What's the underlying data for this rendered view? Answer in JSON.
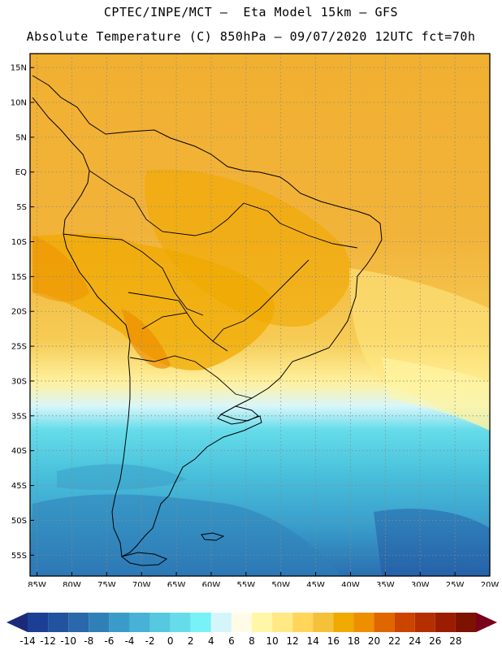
{
  "header": {
    "line1": "CPTEC/INPE/MCT –  Eta Model 15km – GFS",
    "line2": "Absolute Temperature (C) 850hPa – 09/07/2020 12UTC fct=70h"
  },
  "map": {
    "lat_labels": [
      "15N",
      "10N",
      "5N",
      "EQ",
      "5S",
      "10S",
      "15S",
      "20S",
      "25S",
      "30S",
      "35S",
      "40S",
      "45S",
      "50S",
      "55S"
    ],
    "lat_values": [
      15,
      10,
      5,
      0,
      -5,
      -10,
      -15,
      -20,
      -25,
      -30,
      -35,
      -40,
      -45,
      -50,
      -55
    ],
    "lon_labels": [
      "85W",
      "80W",
      "75W",
      "70W",
      "65W",
      "60W",
      "55W",
      "50W",
      "45W",
      "40W",
      "35W",
      "30W",
      "25W",
      "20W"
    ],
    "lon_values": [
      -85,
      -80,
      -75,
      -70,
      -65,
      -60,
      -55,
      -50,
      -45,
      -40,
      -35,
      -30,
      -25,
      -20
    ],
    "lon_range": [
      -86,
      -20
    ],
    "lat_range": [
      -58,
      17
    ],
    "gridlines": "dotted"
  },
  "legend": {
    "labels": [
      "-14",
      "-12",
      "-10",
      "-8",
      "-6",
      "-4",
      "-2",
      "0",
      "2",
      "4",
      "6",
      "8",
      "10",
      "12",
      "14",
      "16",
      "18",
      "20",
      "22",
      "24",
      "26",
      "28"
    ],
    "colors": [
      "#1c3f95",
      "#22539f",
      "#2868ab",
      "#3080b8",
      "#3a9bc8",
      "#47b2d6",
      "#56c8e0",
      "#66dcea",
      "#77f2f7",
      "#d4f6fa",
      "#fffbe6",
      "#fff6a8",
      "#ffe985",
      "#ffd65a",
      "#f5c03a",
      "#f0a900",
      "#ee8f00",
      "#e06600",
      "#cb4400",
      "#b52e00",
      "#9c1c00",
      "#7d1200"
    ],
    "left_arrow_color": "#1b2a78",
    "right_arrow_color": "#7a001c"
  }
}
